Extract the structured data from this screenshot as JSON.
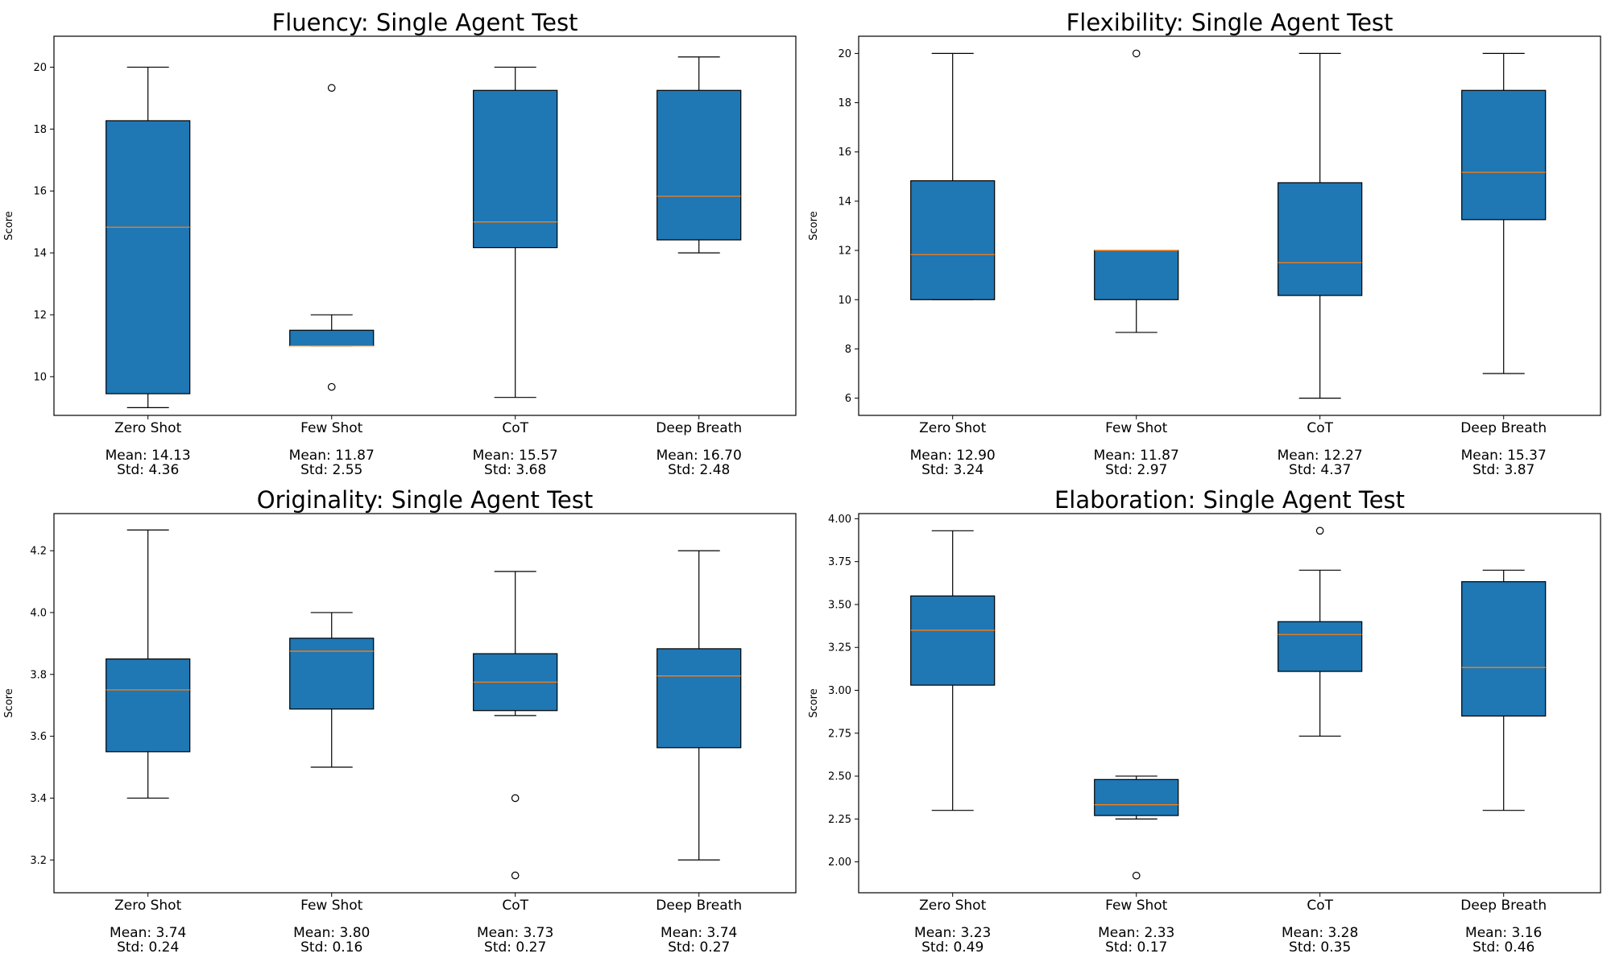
{
  "chart_data": [
    {
      "type": "box",
      "title": "Fluency: Single Agent Test",
      "xlabel": "",
      "ylabel": "Score",
      "ylim": [
        8.75,
        21.0
      ],
      "yticks": [
        10,
        12,
        14,
        16,
        18,
        20
      ],
      "ytick_decimals": 0,
      "categories": [
        "Zero Shot",
        "Few Shot",
        "CoT",
        "Deep Breath"
      ],
      "boxes": [
        {
          "whisker_low": 9.0,
          "q1": 9.45,
          "median": 14.83,
          "q3": 18.27,
          "whisker_high": 20.0,
          "outliers": []
        },
        {
          "whisker_low": 11.0,
          "q1": 11.0,
          "median": 11.0,
          "q3": 11.5,
          "whisker_high": 12.0,
          "outliers": [
            19.33,
            9.67
          ]
        },
        {
          "whisker_low": 9.33,
          "q1": 14.17,
          "median": 15.0,
          "q3": 19.25,
          "whisker_high": 20.0,
          "outliers": []
        },
        {
          "whisker_low": 14.0,
          "q1": 14.42,
          "median": 15.83,
          "q3": 19.25,
          "whisker_high": 20.33,
          "outliers": []
        }
      ],
      "stats": [
        {
          "mean": "Mean: 14.13",
          "std": "Std: 4.36"
        },
        {
          "mean": "Mean: 11.87",
          "std": "Std: 2.55"
        },
        {
          "mean": "Mean: 15.57",
          "std": "Std: 3.68"
        },
        {
          "mean": "Mean: 16.70",
          "std": "Std: 2.48"
        }
      ]
    },
    {
      "type": "box",
      "title": "Flexibility: Single Agent Test",
      "xlabel": "",
      "ylabel": "Score",
      "ylim": [
        5.3,
        20.7
      ],
      "yticks": [
        6,
        8,
        10,
        12,
        14,
        16,
        18,
        20
      ],
      "ytick_decimals": 0,
      "categories": [
        "Zero Shot",
        "Few Shot",
        "CoT",
        "Deep Breath"
      ],
      "boxes": [
        {
          "whisker_low": 10.0,
          "q1": 10.0,
          "median": 11.83,
          "q3": 14.83,
          "whisker_high": 20.0,
          "outliers": []
        },
        {
          "whisker_low": 8.67,
          "q1": 10.0,
          "median": 12.0,
          "q3": 12.0,
          "whisker_high": 12.0,
          "outliers": [
            20.0
          ]
        },
        {
          "whisker_low": 6.0,
          "q1": 10.17,
          "median": 11.5,
          "q3": 14.75,
          "whisker_high": 20.0,
          "outliers": []
        },
        {
          "whisker_low": 7.0,
          "q1": 13.25,
          "median": 15.17,
          "q3": 18.5,
          "whisker_high": 20.0,
          "outliers": []
        }
      ],
      "stats": [
        {
          "mean": "Mean: 12.90",
          "std": "Std: 3.24"
        },
        {
          "mean": "Mean: 11.87",
          "std": "Std: 2.97"
        },
        {
          "mean": "Mean: 12.27",
          "std": "Std: 4.37"
        },
        {
          "mean": "Mean: 15.37",
          "std": "Std: 3.87"
        }
      ]
    },
    {
      "type": "box",
      "title": "Originality: Single Agent Test",
      "xlabel": "",
      "ylabel": "Score",
      "ylim": [
        3.094,
        4.32
      ],
      "yticks": [
        3.2,
        3.4,
        3.6,
        3.8,
        4.0,
        4.2
      ],
      "ytick_decimals": 1,
      "categories": [
        "Zero Shot",
        "Few Shot",
        "CoT",
        "Deep Breath"
      ],
      "boxes": [
        {
          "whisker_low": 3.4,
          "q1": 3.55,
          "median": 3.75,
          "q3": 3.85,
          "whisker_high": 4.267,
          "outliers": []
        },
        {
          "whisker_low": 3.5,
          "q1": 3.688,
          "median": 3.875,
          "q3": 3.917,
          "whisker_high": 4.0,
          "outliers": []
        },
        {
          "whisker_low": 3.667,
          "q1": 3.683,
          "median": 3.775,
          "q3": 3.867,
          "whisker_high": 4.133,
          "outliers": [
            3.4,
            3.15
          ]
        },
        {
          "whisker_low": 3.2,
          "q1": 3.563,
          "median": 3.795,
          "q3": 3.883,
          "whisker_high": 4.2,
          "outliers": []
        }
      ],
      "stats": [
        {
          "mean": "Mean: 3.74",
          "std": "Std: 0.24"
        },
        {
          "mean": "Mean: 3.80",
          "std": "Std: 0.16"
        },
        {
          "mean": "Mean: 3.73",
          "std": "Std: 0.27"
        },
        {
          "mean": "Mean: 3.74",
          "std": "Std: 0.27"
        }
      ]
    },
    {
      "type": "box",
      "title": "Elaboration: Single Agent Test",
      "xlabel": "",
      "ylabel": "Score",
      "ylim": [
        1.82,
        4.03
      ],
      "yticks": [
        2.0,
        2.25,
        2.5,
        2.75,
        3.0,
        3.25,
        3.5,
        3.75,
        4.0
      ],
      "ytick_decimals": 2,
      "categories": [
        "Zero Shot",
        "Few Shot",
        "CoT",
        "Deep Breath"
      ],
      "boxes": [
        {
          "whisker_low": 2.3,
          "q1": 3.03,
          "median": 3.35,
          "q3": 3.55,
          "whisker_high": 3.93,
          "outliers": []
        },
        {
          "whisker_low": 2.25,
          "q1": 2.27,
          "median": 2.333,
          "q3": 2.48,
          "whisker_high": 2.5,
          "outliers": [
            1.92
          ]
        },
        {
          "whisker_low": 2.733,
          "q1": 3.11,
          "median": 3.325,
          "q3": 3.4,
          "whisker_high": 3.7,
          "outliers": [
            3.93
          ]
        },
        {
          "whisker_low": 2.3,
          "q1": 2.85,
          "median": 3.133,
          "q3": 3.633,
          "whisker_high": 3.7,
          "outliers": []
        }
      ],
      "stats": [
        {
          "mean": "Mean: 3.23",
          "std": "Std: 0.49"
        },
        {
          "mean": "Mean: 2.33",
          "std": "Std: 0.17"
        },
        {
          "mean": "Mean: 3.28",
          "std": "Std: 0.35"
        },
        {
          "mean": "Mean: 3.16",
          "std": "Std: 0.46"
        }
      ]
    }
  ],
  "colors": {
    "box_fill": "#1f77b4",
    "median_line": "#ff7f0e",
    "edge": "#000000",
    "background": "#ffffff"
  }
}
